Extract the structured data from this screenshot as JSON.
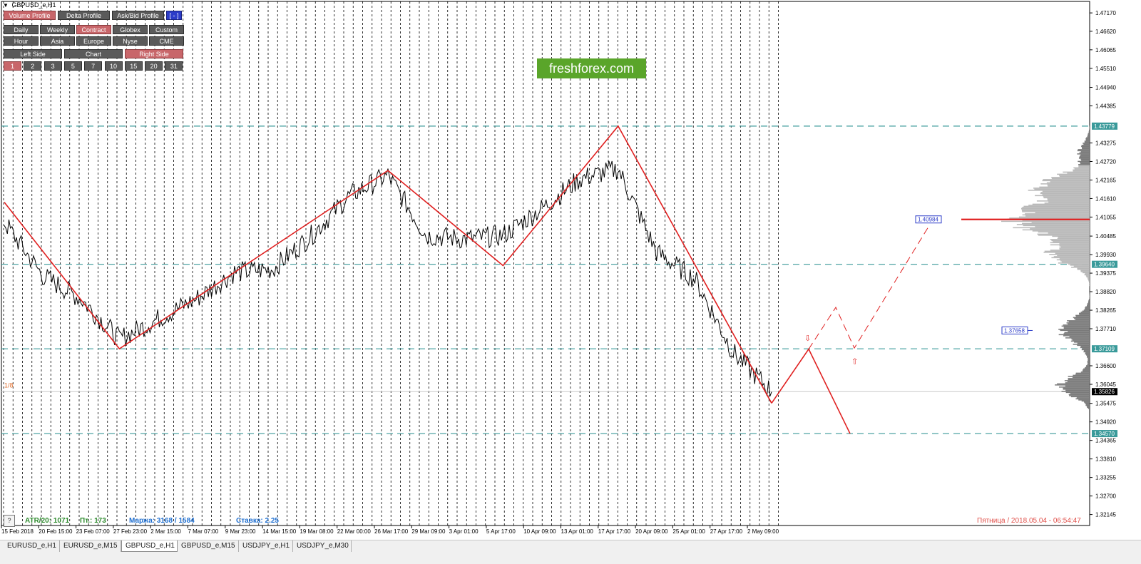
{
  "window": {
    "title": "GBPUSD_e,H1"
  },
  "watermark": {
    "text": "freshforex.com"
  },
  "panel": {
    "row1": [
      "Volume Profile",
      "Delta Profile",
      "Ask/Bid Profile",
      "[ - ]"
    ],
    "row2": [
      "Daily",
      "Weekly",
      "Contract",
      "Globex",
      "Custom"
    ],
    "row3": [
      "Hour",
      "Asia",
      "Europe",
      "Nyse",
      "CME"
    ],
    "row4": [
      "Left Side",
      "Chart",
      "Right Side"
    ],
    "row5": [
      "1",
      "2",
      "3",
      "5",
      "7",
      "10",
      "15",
      "20",
      "31"
    ],
    "active": [
      "Volume Profile",
      "Contract",
      "Right Side",
      "1"
    ]
  },
  "price_axis": {
    "ticks": [
      "1.47170",
      "1.46620",
      "1.46065",
      "1.45510",
      "1.44940",
      "1.44385",
      "1.43275",
      "1.42720",
      "1.42165",
      "1.41610",
      "1.41055",
      "1.40485",
      "1.39930",
      "1.39375",
      "1.38820",
      "1.38265",
      "1.37710",
      "1.36600",
      "1.36045",
      "1.35475",
      "1.34920",
      "1.34365",
      "1.33810",
      "1.33255",
      "1.32700",
      "1.32145"
    ],
    "highlight_levels": [
      {
        "label": "1.43779",
        "color": "#3a9a9a"
      },
      {
        "label": "1.39640",
        "color": "#3a9a9a"
      },
      {
        "label": "1.37109",
        "color": "#3a9a9a"
      },
      {
        "label": "1.34570",
        "color": "#3a9a9a"
      }
    ],
    "current_price": "1.35826",
    "poc_label": "1.40984",
    "value_area_label": "1.37658"
  },
  "time_axis": {
    "labels": [
      "15 Feb 2018",
      "20 Feb 15:00",
      "23 Feb 07:00",
      "27 Feb 23:00",
      "2 Mar 15:00",
      "7 Mar 07:00",
      "9 Mar 23:00",
      "14 Mar 15:00",
      "19 Mar 08:00",
      "22 Mar 00:00",
      "26 Mar 17:00",
      "29 Mar 09:00",
      "3 Apr 01:00",
      "5 Apr 17:00",
      "10 Apr 09:00",
      "13 Apr 01:00",
      "17 Apr 17:00",
      "20 Apr 09:00",
      "25 Apr 01:00",
      "27 Apr 17:00",
      "2 May 09:00"
    ]
  },
  "chart_labels": {
    "fib_label": "1/8"
  },
  "status": {
    "atr": "ATR/20: 1071",
    "pt": "Пт.: 173",
    "margin": "Маржа: 3168 / 1584",
    "rate": "Ставка: 2.25",
    "datetime": "Пятница  /  2018.05.04  -  06:54:47"
  },
  "help_button": "?",
  "tabs": [
    "EURUSD_e,H1",
    "EURUSD_e,M15",
    "GBPUSD_e,H1",
    "GBPUSD_e,M15",
    "USDJPY_e,H1",
    "USDJPY_e,M30"
  ],
  "active_tab": "GBPUSD_e,H1",
  "colors": {
    "zigzag": "#e02020",
    "levels": "#3a9a9a",
    "profile_dark": "#7a7a7a",
    "profile_light": "#b8b8b8",
    "status_green": "#2e8b2e",
    "status_blue": "#1f6fd0",
    "status_red": "#e0504a"
  },
  "chart_data": {
    "type": "line",
    "title": "GBPUSD_e,H1",
    "xlabel": "",
    "ylabel": "",
    "ylim": [
      1.3188,
      1.4745
    ],
    "x": [
      "15 Feb 2018",
      "20 Feb 15:00",
      "23 Feb 07:00",
      "27 Feb 23:00",
      "2 Mar 15:00",
      "7 Mar 07:00",
      "9 Mar 23:00",
      "14 Mar 15:00",
      "19 Mar 08:00",
      "22 Mar 00:00",
      "26 Mar 17:00",
      "29 Mar 09:00",
      "3 Apr 01:00",
      "5 Apr 17:00",
      "10 Apr 09:00",
      "13 Apr 01:00",
      "17 Apr 17:00",
      "20 Apr 09:00",
      "25 Apr 01:00",
      "27 Apr 17:00",
      "2 May 09:00"
    ],
    "series": [
      {
        "values": [
          1.409,
          1.393,
          1.386,
          1.374,
          1.38,
          1.386,
          1.394,
          1.395,
          1.405,
          1.417,
          1.423,
          1.405,
          1.404,
          1.405,
          1.413,
          1.422,
          1.425,
          1.4,
          1.392,
          1.37,
          1.3582
        ]
      },
      {
        "values": [
          1.415,
          null,
          null,
          1.3711,
          null,
          null,
          null,
          null,
          null,
          null,
          1.4245,
          null,
          null,
          1.396,
          null,
          null,
          1.4378,
          null,
          null,
          null,
          1.3548
        ]
      }
    ],
    "levels": [
      1.43779,
      1.3964,
      1.37109,
      1.3457
    ],
    "current": 1.35826,
    "grid": true
  }
}
